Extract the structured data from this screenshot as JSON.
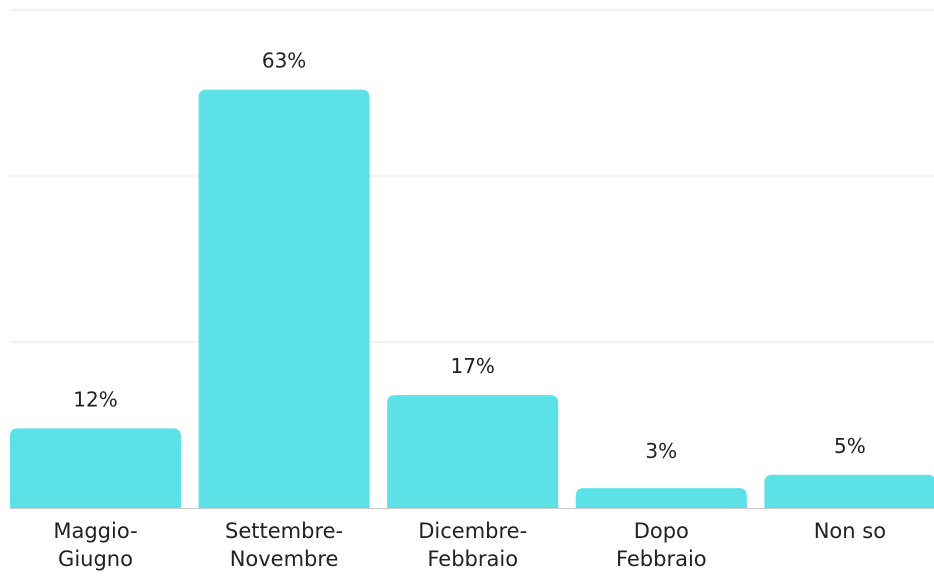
{
  "chart_data": {
    "type": "bar",
    "categories": [
      [
        "Maggio-",
        "Giugno"
      ],
      [
        "Settembre-",
        "Novembre"
      ],
      [
        "Dicembre-",
        "Febbraio"
      ],
      [
        "Dopo",
        "Febbraio"
      ],
      [
        "Non so"
      ]
    ],
    "values": [
      12,
      63,
      17,
      3,
      5
    ],
    "data_labels": [
      "12%",
      "63%",
      "17%",
      "3%",
      "5%"
    ],
    "ylim": [
      0,
      75
    ],
    "grid": true,
    "bar_color": "#5ce1e6",
    "gridline_color": "#e6e6e6",
    "axis_color": "#cccccc",
    "text_color": "#222222"
  }
}
